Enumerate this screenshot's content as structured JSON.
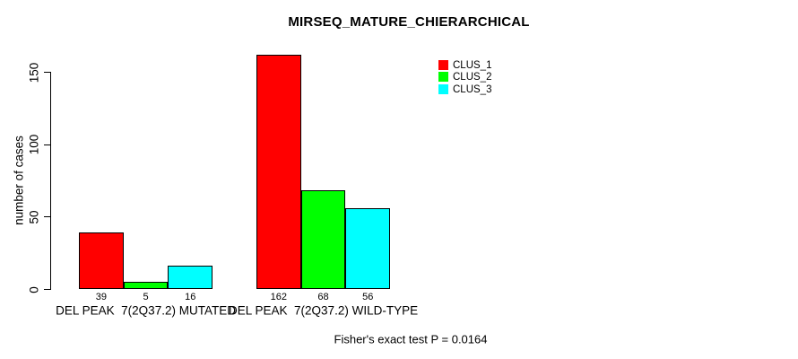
{
  "chart_data": {
    "type": "bar",
    "title": "MIRSEQ_MATURE_CHIERARCHICAL",
    "ylabel": "number of cases",
    "xlabel": "",
    "ylim": [
      0,
      150
    ],
    "yticks": [
      0,
      50,
      100,
      150
    ],
    "grid": false,
    "legend_position": "top-right-inside",
    "categories": [
      "DEL PEAK  7(2Q37.2) MUTATED",
      "DEL PEAK  7(2Q37.2) WILD-TYPE"
    ],
    "series": [
      {
        "name": "CLUS_1",
        "color": "#FF0000",
        "values": [
          39,
          162
        ]
      },
      {
        "name": "CLUS_2",
        "color": "#00FF00",
        "values": [
          5,
          68
        ]
      },
      {
        "name": "CLUS_3",
        "color": "#00FFFF",
        "values": [
          16,
          56
        ]
      }
    ],
    "bar_value_labels": [
      [
        39,
        5,
        16
      ],
      [
        162,
        68,
        56
      ]
    ],
    "annotation": "Fisher's exact test P = 0.0164",
    "colors": {
      "background": "#FFFFFF",
      "axis": "#000000",
      "text": "#000000"
    }
  }
}
